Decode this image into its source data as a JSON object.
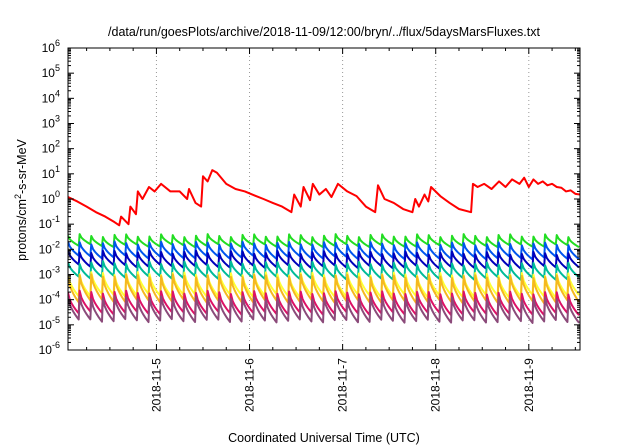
{
  "chart_data": {
    "type": "line",
    "title": "/data/run/goesPlots/archive/2018-11-09/12:00/bryn/../flux/5daysMarsFluxes.txt",
    "xlabel": "Coordinated Universal Time (UTC)",
    "ylabel": {
      "main": "protons/cm",
      "sup": "2",
      "rest": "-s-sr-MeV"
    },
    "yscale": "log",
    "ylim": [
      1e-06,
      1000000.0
    ],
    "xlim_days": [
      4.05,
      9.55
    ],
    "xticks": [
      {
        "value": 5,
        "label": "2018-11-5"
      },
      {
        "value": 6,
        "label": "2018-11-6"
      },
      {
        "value": 7,
        "label": "2018-11-7"
      },
      {
        "value": 8,
        "label": "2018-11-8"
      },
      {
        "value": 9,
        "label": "2018-11-9"
      }
    ],
    "yticks": [
      {
        "exp": -6
      },
      {
        "exp": -5
      },
      {
        "exp": -4
      },
      {
        "exp": -3
      },
      {
        "exp": -2
      },
      {
        "exp": -1
      },
      {
        "exp": 0
      },
      {
        "exp": 1
      },
      {
        "exp": 2
      },
      {
        "exp": 3
      },
      {
        "exp": 4
      },
      {
        "exp": 5
      },
      {
        "exp": 6
      }
    ],
    "grid": true,
    "series": [
      {
        "color": "#ff0000",
        "x": [
          4.05,
          4.15,
          4.25,
          4.35,
          4.45,
          4.55,
          4.6,
          4.62,
          4.7,
          4.72,
          4.78,
          4.8,
          4.85,
          4.92,
          4.98,
          5.05,
          5.15,
          5.25,
          5.33,
          5.35,
          5.42,
          5.48,
          5.5,
          5.55,
          5.6,
          5.65,
          5.75,
          5.85,
          5.95,
          6.05,
          6.15,
          6.25,
          6.35,
          6.45,
          6.48,
          6.55,
          6.58,
          6.65,
          6.68,
          6.75,
          6.82,
          6.88,
          6.95,
          7.05,
          7.15,
          7.25,
          7.35,
          7.38,
          7.45,
          7.55,
          7.65,
          7.75,
          7.78,
          7.82,
          7.88,
          7.92,
          7.95,
          8.05,
          8.15,
          8.25,
          8.38,
          8.4,
          8.45,
          8.52,
          8.6,
          8.68,
          8.75,
          8.82,
          8.9,
          8.95,
          9.0,
          9.05,
          9.1,
          9.15,
          9.2,
          9.25,
          9.3,
          9.35,
          9.4,
          9.45,
          9.5,
          9.55
        ],
        "y": [
          1.2,
          0.8,
          0.5,
          0.3,
          0.2,
          0.12,
          0.09,
          0.2,
          0.1,
          0.5,
          0.25,
          2,
          1,
          3,
          2,
          4,
          2,
          2,
          1,
          2.5,
          0.7,
          0.5,
          8,
          5,
          14,
          11,
          4,
          2.5,
          2,
          1.4,
          1,
          0.7,
          0.5,
          0.3,
          1.5,
          0.5,
          3,
          0.9,
          4,
          1.5,
          2.5,
          1.2,
          4,
          2,
          1.3,
          0.5,
          0.3,
          3.5,
          1,
          0.7,
          0.4,
          0.3,
          1,
          0.5,
          1.5,
          0.8,
          3,
          1.3,
          0.7,
          0.4,
          0.3,
          4,
          3,
          4,
          2.5,
          5,
          3,
          6,
          4,
          7,
          3,
          6,
          4,
          5,
          3.5,
          4,
          3,
          2.8,
          2,
          2.2,
          1.6,
          1.5
        ]
      },
      {
        "color": "#22dd22",
        "sawtooth": true,
        "high": 0.035,
        "low": 0.014,
        "freq": 8,
        "drift": 1.0
      },
      {
        "color": "#0055ee",
        "sawtooth": true,
        "high": 0.018,
        "low": 0.005,
        "freq": 8,
        "drift": 0.9
      },
      {
        "color": "#0000bb",
        "sawtooth": true,
        "high": 0.008,
        "low": 0.0022,
        "freq": 8,
        "drift": 0.85
      },
      {
        "color": "#00bb99",
        "sawtooth": true,
        "high": 0.003,
        "low": 0.0008,
        "freq": 8,
        "drift": 0.85
      },
      {
        "color": "#ffff33",
        "sawtooth": true,
        "high": 0.0011,
        "low": 0.00015,
        "freq": 8,
        "drift": 0.9
      },
      {
        "color": "#f5b820",
        "sawtooth": true,
        "high": 0.0009,
        "low": 9e-05,
        "freq": 8,
        "drift": 0.9
      },
      {
        "color": "#dd1166",
        "sawtooth": true,
        "high": 0.0002,
        "low": 3e-05,
        "freq": 8,
        "drift": 0.9
      },
      {
        "color": "#8b4a7a",
        "sawtooth": true,
        "high": 0.00012,
        "low": 1.5e-05,
        "freq": 8,
        "drift": 0.9
      }
    ]
  }
}
